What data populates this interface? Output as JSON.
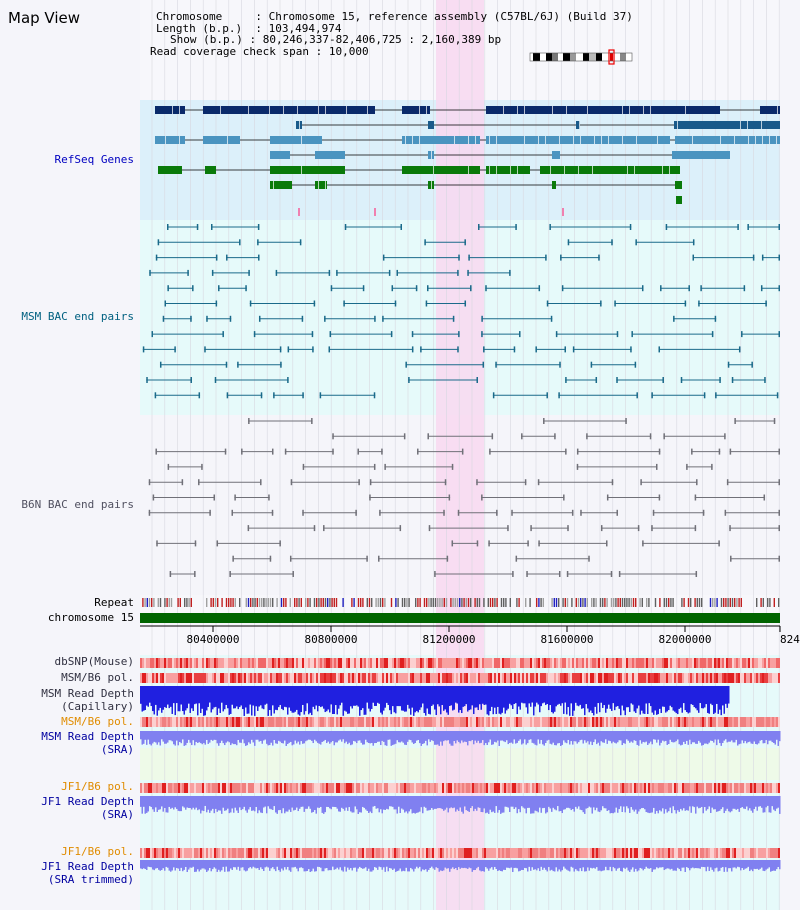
{
  "page": {
    "title": "Map View"
  },
  "header": {
    "chromosome_label": "Chromosome",
    "chromosome_value": "Chromosome 15, reference assembly (C57BL/6J) (Build 37)",
    "length_label": "Length (b.p.)",
    "length_value": "103,494,974",
    "show_label": "Show (b.p.)",
    "show_value": "80,246,337-82,406,725 : 2,160,389 bp",
    "coverage_label": "Read coverage check span",
    "coverage_value": "10,000"
  },
  "tracks": {
    "refseq": "RefSeq Genes",
    "msm_bac": "MSM BAC end pairs",
    "b6n_bac": "B6N BAC end pairs",
    "repeat": "Repeat",
    "chromosome": "chromosome 15",
    "dbsnp": "dbSNP(Mouse)",
    "msm_b6_pol_1": "MSM/B6 pol.",
    "msm_read_depth_cap_1": "MSM Read Depth",
    "msm_read_depth_cap_2": "(Capillary)",
    "msm_b6_pol_2": "MSM/B6 pol.",
    "msm_read_depth_sra_1": "MSM Read Depth",
    "msm_read_depth_sra_2": "(SRA)",
    "jf1_b6_pol_1": "JF1/B6 pol.",
    "jf1_read_depth_sra_1": "JF1 Read Depth",
    "jf1_read_depth_sra_2": "(SRA)",
    "jf1_b6_pol_2": "JF1/B6 pol.",
    "jf1_read_depth_trim_1": "JF1 Read Depth",
    "jf1_read_depth_trim_2": "(SRA trimmed)"
  },
  "axis": {
    "ticks": [
      "80400000",
      "80800000",
      "81200000",
      "81600000",
      "82000000",
      "824"
    ]
  },
  "colors": {
    "refseq_bg": "#dcf0fa",
    "msm_bg": "#e6fafa",
    "b6n_bg": "#f5f5fa",
    "highlight": "#f8d8f0",
    "refseq_label": "#0000c0",
    "msm_label": "#006080",
    "b6n_label": "#505060",
    "orange_label": "#e08c00",
    "blue_label": "#0000a0",
    "chromosome_green": "#006400",
    "depth_blue": "#2020e0",
    "depth_lightblue": "#8080f0"
  }
}
